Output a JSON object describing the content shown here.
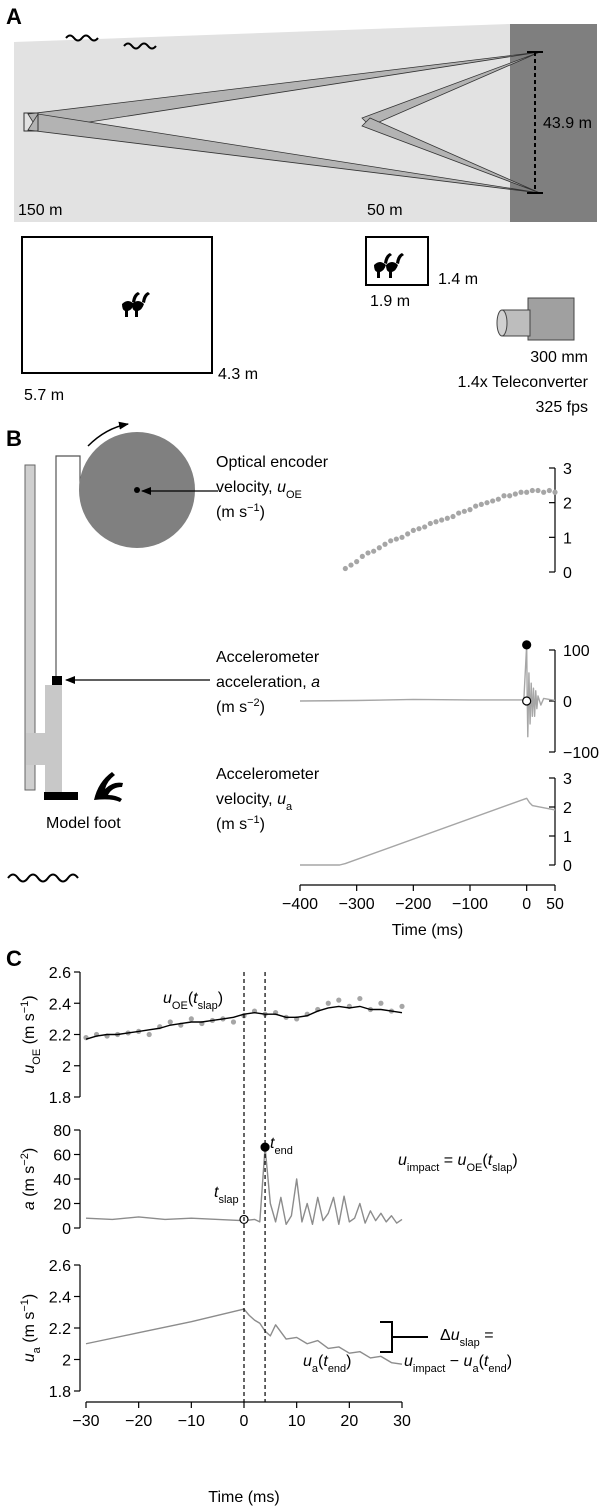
{
  "panel_a": {
    "label": "A",
    "distances": [
      "150 m",
      "50 m"
    ],
    "height": "43.9 m",
    "box_large": {
      "width": "5.7 m",
      "height": "4.3 m"
    },
    "box_small": {
      "width": "1.9 m",
      "height": "1.4 m"
    },
    "camera": [
      "300 mm",
      "1.4x Teleconverter",
      "325 fps"
    ]
  },
  "panel_b": {
    "label": "B",
    "encoder": [
      [
        {
          "t": "Optical encoder"
        }
      ],
      [
        {
          "t": "velocity, "
        },
        {
          "t": "u",
          "i": true
        },
        {
          "t": "OE",
          "sub": true
        }
      ],
      [
        {
          "t": "(m s"
        },
        {
          "t": "−1",
          "sup": true
        },
        {
          "t": ")"
        }
      ]
    ],
    "accel": [
      [
        {
          "t": "Accelerometer"
        }
      ],
      [
        {
          "t": "acceleration, "
        },
        {
          "t": "a",
          "i": true
        }
      ],
      [
        {
          "t": "(m s"
        },
        {
          "t": "−2",
          "sup": true
        },
        {
          "t": ")"
        }
      ]
    ],
    "velocity": [
      [
        {
          "t": "Accelerometer"
        }
      ],
      [
        {
          "t": "velocity, "
        },
        {
          "t": "u",
          "i": true
        },
        {
          "t": "a",
          "sub": true
        }
      ],
      [
        {
          "t": "(m s"
        },
        {
          "t": "−1",
          "sup": true
        },
        {
          "t": ")"
        }
      ]
    ],
    "foot": "Model foot"
  },
  "panel_c": {
    "label": "C",
    "u_oe_slap": [
      {
        "t": "u",
        "i": true
      },
      {
        "t": "OE",
        "sub": true
      },
      {
        "t": "("
      },
      {
        "t": "t",
        "i": true
      },
      {
        "t": "slap",
        "sub": true
      },
      {
        "t": ")"
      }
    ],
    "impact": [
      {
        "t": "u",
        "i": true
      },
      {
        "t": "impact",
        "sub": true
      },
      {
        "t": " = "
      },
      {
        "t": "u",
        "i": true
      },
      {
        "t": "OE",
        "sub": true
      },
      {
        "t": "("
      },
      {
        "t": "t",
        "i": true
      },
      {
        "t": "slap",
        "sub": true
      },
      {
        "t": ")"
      }
    ],
    "t_end": [
      {
        "t": "t",
        "i": true
      },
      {
        "t": "end",
        "sub": true
      }
    ],
    "t_slap": [
      {
        "t": "t",
        "i": true
      },
      {
        "t": "slap",
        "sub": true
      }
    ],
    "u_a_end": [
      {
        "t": "u",
        "i": true
      },
      {
        "t": "a",
        "sub": true
      },
      {
        "t": "("
      },
      {
        "t": "t",
        "i": true
      },
      {
        "t": "end",
        "sub": true
      },
      {
        "t": ")"
      }
    ],
    "delta_1": [
      {
        "t": "Δ"
      },
      {
        "t": "u",
        "i": true
      },
      {
        "t": "slap",
        "sub": true
      },
      {
        "t": " ="
      }
    ],
    "delta_2": [
      {
        "t": "u",
        "i": true
      },
      {
        "t": "impact",
        "sub": true
      },
      {
        "t": " − "
      },
      {
        "t": "u",
        "i": true
      },
      {
        "t": "a",
        "sub": true
      },
      {
        "t": "("
      },
      {
        "t": "t",
        "i": true
      },
      {
        "t": "end",
        "sub": true
      },
      {
        "t": ")"
      }
    ]
  },
  "chart_data": [
    {
      "type": "scatter",
      "color": "#a6a6a6",
      "x": [
        -320,
        -310,
        -300,
        -290,
        -280,
        -270,
        -260,
        -250,
        -240,
        -230,
        -220,
        -210,
        -200,
        -190,
        -180,
        -170,
        -160,
        -150,
        -140,
        -130,
        -120,
        -110,
        -100,
        -90,
        -80,
        -70,
        -60,
        -50,
        -40,
        -30,
        -20,
        -10,
        0,
        10,
        20,
        30,
        40,
        50
      ],
      "values": [
        0.1,
        0.2,
        0.3,
        0.45,
        0.55,
        0.6,
        0.7,
        0.8,
        0.9,
        0.95,
        1.0,
        1.1,
        1.2,
        1.25,
        1.3,
        1.4,
        1.45,
        1.5,
        1.55,
        1.6,
        1.7,
        1.75,
        1.8,
        1.9,
        1.95,
        2.0,
        2.05,
        2.1,
        2.2,
        2.2,
        2.25,
        2.3,
        2.3,
        2.35,
        2.35,
        2.3,
        2.35,
        2.3
      ],
      "xlim": [
        -400,
        50
      ],
      "ylim": [
        0,
        3
      ],
      "yticks": [
        0,
        1,
        2,
        3
      ]
    },
    {
      "type": "line",
      "color": "#a6a6a6",
      "x": [
        -400,
        -300,
        -200,
        -100,
        -5,
        0,
        1,
        2,
        4,
        6,
        8,
        10,
        12,
        14,
        16,
        18,
        20,
        25,
        30,
        40,
        50
      ],
      "values": [
        0,
        1,
        3,
        2,
        2,
        110,
        5,
        -70,
        55,
        -45,
        35,
        -30,
        25,
        -30,
        20,
        -15,
        10,
        -8,
        5,
        3,
        1
      ],
      "xlim": [
        -400,
        50
      ],
      "ylim": [
        -100,
        100
      ],
      "yticks": [
        {
          "value": -100,
          "label": "−100"
        },
        0,
        100
      ],
      "markers": [
        {
          "x": 0,
          "value": 110,
          "fill": "#000"
        },
        {
          "x": 0,
          "value": 0,
          "fill": "#fff"
        }
      ]
    },
    {
      "type": "line",
      "color": "#a6a6a6",
      "x": [
        -400,
        -330,
        -320,
        0,
        5,
        10,
        50
      ],
      "values": [
        0,
        0,
        0.05,
        2.3,
        2.15,
        2.05,
        1.9
      ],
      "xlim": [
        -400,
        50
      ],
      "ylim": [
        0,
        3
      ],
      "yticks": [
        0,
        1,
        2,
        3
      ],
      "xticks": [
        {
          "value": -400,
          "label": "−400"
        },
        {
          "value": -300,
          "label": "−300"
        },
        {
          "value": -200,
          "label": "−200"
        },
        {
          "value": -100,
          "label": "−100"
        },
        0,
        50
      ],
      "xlabel": "Time (ms)"
    },
    {
      "type": "line",
      "x": [
        -30,
        -28,
        -26,
        -24,
        -22,
        -20,
        -18,
        -16,
        -14,
        -12,
        -10,
        -8,
        -6,
        -4,
        -2,
        0,
        2,
        4,
        6,
        8,
        10,
        12,
        14,
        16,
        18,
        20,
        22,
        24,
        26,
        28,
        30
      ],
      "series": [
        {
          "style": "points",
          "color": "#a6a6a6",
          "values": [
            2.18,
            2.2,
            2.19,
            2.2,
            2.21,
            2.22,
            2.2,
            2.25,
            2.28,
            2.26,
            2.3,
            2.27,
            2.29,
            2.3,
            2.28,
            2.32,
            2.35,
            2.33,
            2.34,
            2.31,
            2.3,
            2.33,
            2.36,
            2.4,
            2.42,
            2.38,
            2.43,
            2.36,
            2.4,
            2.35,
            2.38
          ]
        },
        {
          "style": "line",
          "color": "#000000",
          "values": [
            2.17,
            2.19,
            2.2,
            2.2,
            2.21,
            2.22,
            2.23,
            2.24,
            2.26,
            2.27,
            2.28,
            2.28,
            2.29,
            2.3,
            2.31,
            2.33,
            2.34,
            2.33,
            2.33,
            2.31,
            2.31,
            2.32,
            2.35,
            2.37,
            2.38,
            2.37,
            2.38,
            2.36,
            2.36,
            2.35,
            2.34
          ]
        }
      ],
      "xlim": [
        -30,
        30
      ],
      "ylim": [
        1.8,
        2.6
      ],
      "yticks": [
        1.8,
        2,
        2.2,
        2.4,
        2.6
      ],
      "ylabel": [
        {
          "t": "u",
          "i": true
        },
        {
          "t": "OE",
          "sub": true
        },
        {
          "t": " (m s"
        },
        {
          "t": "−1",
          "sup": true
        },
        {
          "t": ")"
        }
      ]
    },
    {
      "type": "line",
      "color": "#8c8c8c",
      "x": [
        -30,
        -25,
        -20,
        -15,
        -10,
        -5,
        0,
        2,
        3,
        4,
        5,
        6,
        7,
        8,
        9,
        10,
        11,
        12,
        13,
        14,
        15,
        16,
        17,
        18,
        19,
        20,
        21,
        22,
        23,
        24,
        25,
        26,
        27,
        28,
        29,
        30
      ],
      "values": [
        8,
        7,
        9,
        7,
        8,
        7,
        6,
        7,
        5,
        66,
        20,
        5,
        25,
        3,
        10,
        40,
        5,
        20,
        3,
        25,
        6,
        12,
        25,
        3,
        26,
        5,
        8,
        20,
        4,
        14,
        6,
        12,
        5,
        10,
        4,
        7
      ],
      "xlim": [
        -30,
        30
      ],
      "ylim": [
        0,
        80
      ],
      "yticks": [
        0,
        20,
        40,
        60,
        80
      ],
      "ylabel": [
        {
          "t": "a",
          "i": true
        },
        {
          "t": " (m s"
        },
        {
          "t": "−2",
          "sup": true
        },
        {
          "t": ")"
        }
      ],
      "markers": [
        {
          "x": 4,
          "value": 66,
          "fill": "#000"
        },
        {
          "x": 0,
          "value": 7,
          "fill": "#fff"
        }
      ]
    },
    {
      "type": "line",
      "color": "#8c8c8c",
      "x": [
        -30,
        -20,
        -10,
        0,
        1,
        2,
        3,
        4,
        5,
        6,
        8,
        10,
        12,
        14,
        16,
        18,
        20,
        22,
        24,
        26,
        28,
        30
      ],
      "values": [
        2.1,
        2.17,
        2.24,
        2.32,
        2.28,
        2.25,
        2.23,
        2.18,
        2.15,
        2.22,
        2.13,
        2.14,
        2.1,
        2.12,
        2.07,
        2.08,
        2.04,
        2.05,
        2.01,
        2.02,
        1.98,
        1.97
      ],
      "xlim": [
        -30,
        30
      ],
      "ylim": [
        1.8,
        2.6
      ],
      "yticks": [
        1.8,
        2,
        2.2,
        2.4,
        2.6
      ],
      "xticks": [
        {
          "value": -30,
          "label": "−30"
        },
        {
          "value": -20,
          "label": "−20"
        },
        {
          "value": -10,
          "label": "−10"
        },
        0,
        10,
        20,
        30
      ],
      "xlabel": "Time (ms)",
      "ylabel": [
        {
          "t": "u",
          "i": true
        },
        {
          "t": "a",
          "sub": true
        },
        {
          "t": " (m s"
        },
        {
          "t": "−1",
          "sup": true
        },
        {
          "t": ")"
        }
      ],
      "vlines": [
        0,
        4
      ]
    }
  ]
}
